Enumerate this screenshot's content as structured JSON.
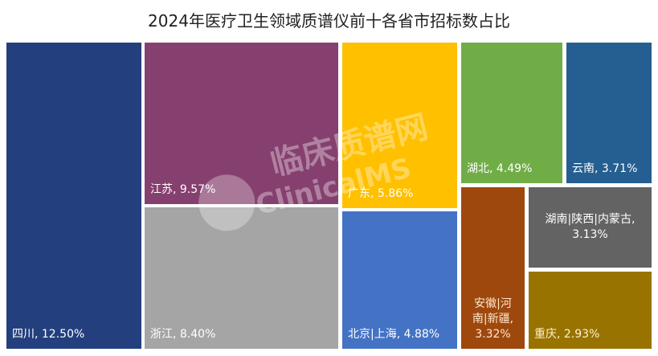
{
  "chart_data": {
    "type": "treemap",
    "title": "2024年医疗卫生领域质谱仪前十各省市招标数占比",
    "items": [
      {
        "name": "四川",
        "value": 12.5,
        "label": "四川, 12.50%",
        "color": "#243F7E"
      },
      {
        "name": "江苏",
        "value": 9.57,
        "label": "江苏, 9.57%",
        "color": "#86406F"
      },
      {
        "name": "浙江",
        "value": 8.4,
        "label": "浙江, 8.40%",
        "color": "#A5A5A5"
      },
      {
        "name": "广东",
        "value": 5.86,
        "label": "广东, 5.86%",
        "color": "#FFC000"
      },
      {
        "name": "北京|上海",
        "value": 4.88,
        "label": "北京|上海, 4.88%",
        "color": "#4472C4"
      },
      {
        "name": "湖北",
        "value": 4.49,
        "label": "湖北, 4.49%",
        "color": "#70AD47"
      },
      {
        "name": "云南",
        "value": 3.71,
        "label": "云南, 3.71%",
        "color": "#255E91"
      },
      {
        "name": "安徽|河南|新疆",
        "value": 3.32,
        "label": "安徽|河\n南|新疆,\n3.32%",
        "color": "#9E480E"
      },
      {
        "name": "湖南|陕西|内蒙古",
        "value": 3.13,
        "label": "湖南|陕西|内蒙古,\n3.13%",
        "color": "#636363"
      },
      {
        "name": "重庆",
        "value": 2.93,
        "label": "重庆, 2.93%",
        "color": "#997300"
      }
    ]
  },
  "watermark": {
    "cn": "临床质谱网",
    "en": "ClinicalMS"
  }
}
